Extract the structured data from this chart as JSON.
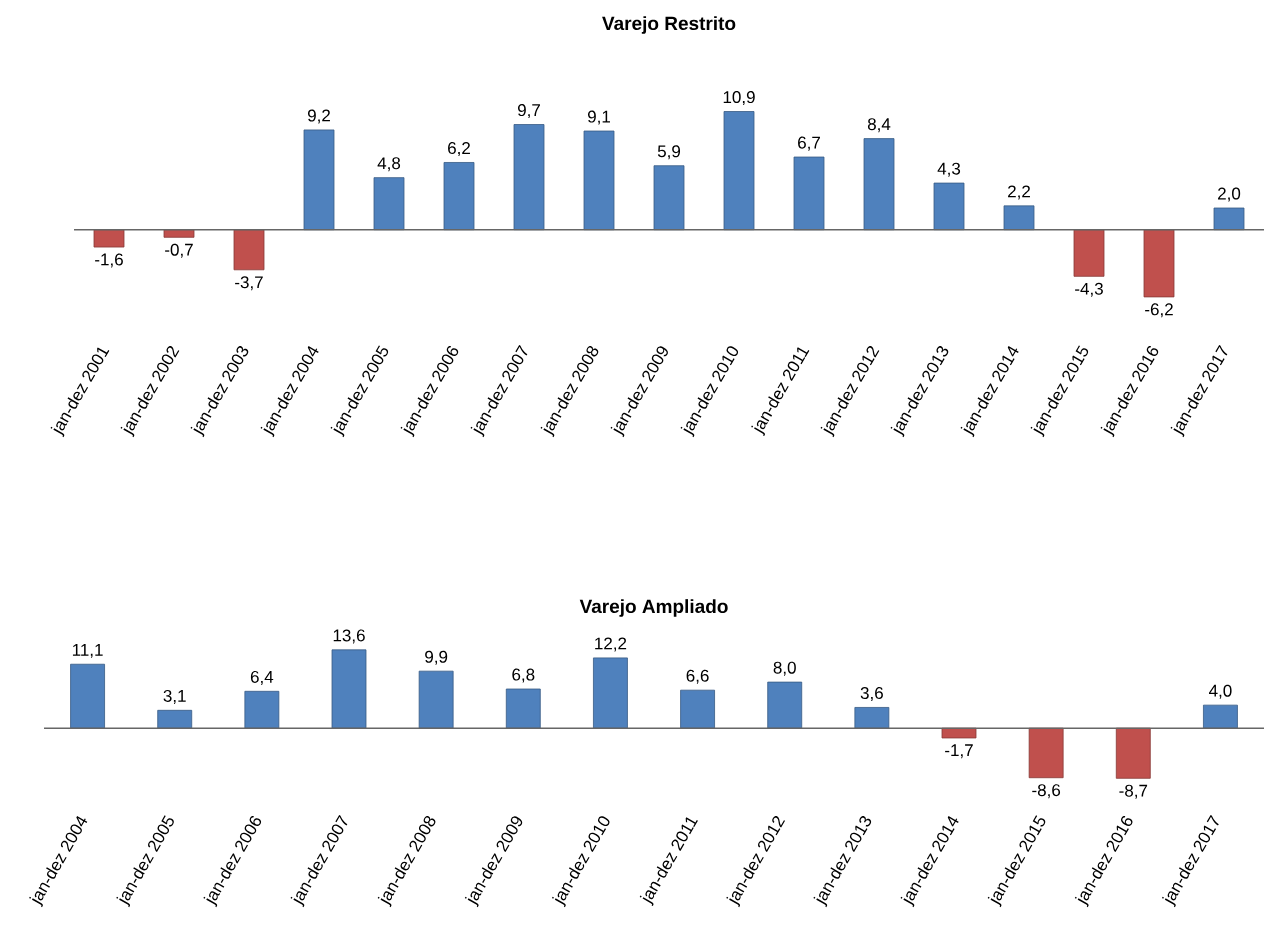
{
  "chart_data": [
    {
      "type": "bar",
      "title": "Varejo Restrito",
      "categories": [
        "jan-dez 2001",
        "jan-dez 2002",
        "jan-dez 2003",
        "jan-dez 2004",
        "jan-dez 2005",
        "jan-dez 2006",
        "jan-dez 2007",
        "jan-dez 2008",
        "jan-dez 2009",
        "jan-dez 2010",
        "jan-dez 2011",
        "jan-dez 2012",
        "jan-dez 2013",
        "jan-dez 2014",
        "jan-dez 2015",
        "jan-dez 2016",
        "jan-dez 2017"
      ],
      "values": [
        -1.6,
        -0.7,
        -3.7,
        9.2,
        4.8,
        6.2,
        9.7,
        9.1,
        5.9,
        10.9,
        6.7,
        8.4,
        4.3,
        2.2,
        -4.3,
        -6.2,
        2.0
      ],
      "value_labels": [
        "-1,6",
        "-0,7",
        "-3,7",
        "9,2",
        "4,8",
        "6,2",
        "9,7",
        "9,1",
        "5,9",
        "10,9",
        "6,7",
        "8,4",
        "4,3",
        "2,2",
        "-4,3",
        "-6,2",
        "2,0"
      ],
      "colors": [
        "#c0504d",
        "#c0504d",
        "#c0504d",
        "#4f81bd",
        "#4f81bd",
        "#4f81bd",
        "#4f81bd",
        "#4f81bd",
        "#4f81bd",
        "#4f81bd",
        "#4f81bd",
        "#4f81bd",
        "#4f81bd",
        "#4f81bd",
        "#c0504d",
        "#c0504d",
        "#4f81bd"
      ]
    },
    {
      "type": "bar",
      "title": "Varejo Ampliado",
      "categories": [
        "jan-dez 2004",
        "jan-dez 2005",
        "jan-dez 2006",
        "jan-dez 2007",
        "jan-dez 2008",
        "jan-dez 2009",
        "jan-dez 2010",
        "jan-dez 2011",
        "jan-dez 2012",
        "jan-dez 2013",
        "jan-dez 2014",
        "jan-dez 2015",
        "jan-dez 2016",
        "jan-dez 2017"
      ],
      "values": [
        11.1,
        3.1,
        6.4,
        13.6,
        9.9,
        6.8,
        12.2,
        6.6,
        8.0,
        3.6,
        -1.7,
        -8.6,
        -8.7,
        4.0
      ],
      "value_labels": [
        "11,1",
        "3,1",
        "6,4",
        "13,6",
        "9,9",
        "6,8",
        "12,2",
        "6,6",
        "8,0",
        "3,6",
        "-1,7",
        "-8,6",
        "-8,7",
        "4,0"
      ],
      "colors": [
        "#4f81bd",
        "#4f81bd",
        "#4f81bd",
        "#4f81bd",
        "#4f81bd",
        "#4f81bd",
        "#4f81bd",
        "#4f81bd",
        "#4f81bd",
        "#4f81bd",
        "#c0504d",
        "#c0504d",
        "#c0504d",
        "#4f81bd"
      ]
    }
  ]
}
